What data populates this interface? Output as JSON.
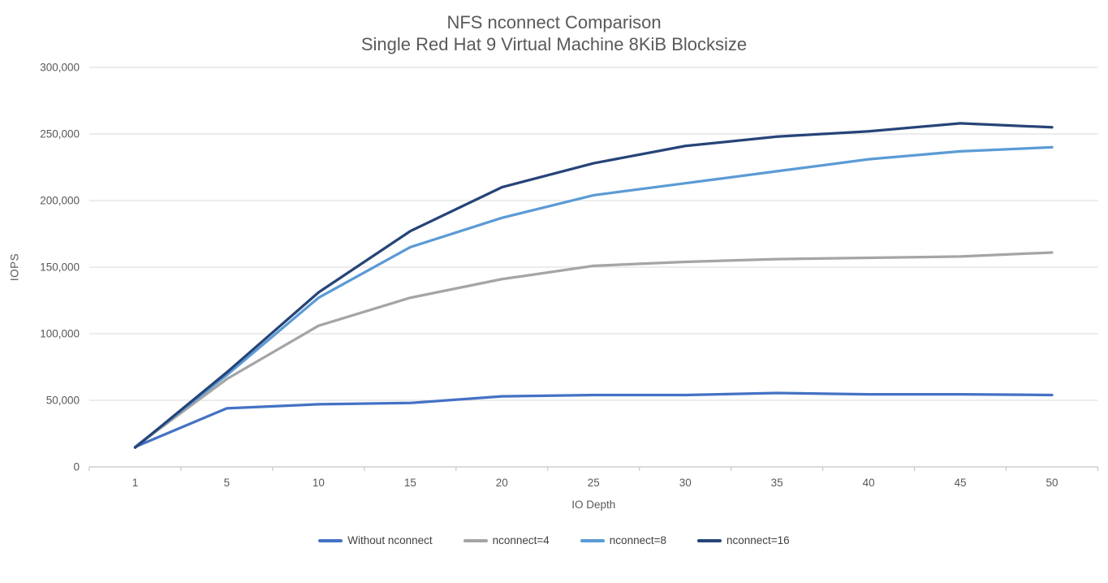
{
  "chart_data": {
    "type": "line",
    "title": "NFS nconnect Comparison",
    "subtitle": "Single Red Hat 9 Virtual Machine 8KiB Blocksize",
    "xlabel": "IO Depth",
    "ylabel": "IOPS",
    "categories": [
      1,
      5,
      10,
      15,
      20,
      25,
      30,
      35,
      40,
      45,
      50
    ],
    "y_axis": {
      "min": 0,
      "max": 300000,
      "step": 50000,
      "tick_labels": [
        "0",
        "50,000",
        "100,000",
        "150,000",
        "200,000",
        "250,000",
        "300,000"
      ]
    },
    "grid": true,
    "legend_position": "bottom",
    "series": [
      {
        "name": "Without nconnect",
        "color": "#4472C4",
        "values": [
          15000,
          44000,
          47000,
          48000,
          53000,
          54000,
          54000,
          55500,
          54500,
          54500,
          54000
        ]
      },
      {
        "name": "nconnect=4",
        "color": "#A5A5A5",
        "values": [
          15000,
          66000,
          106000,
          127000,
          141000,
          151000,
          154000,
          156000,
          157000,
          158000,
          161000
        ]
      },
      {
        "name": "nconnect=8",
        "color": "#5B9BD5",
        "values": [
          15000,
          69000,
          127000,
          165000,
          187000,
          204000,
          213000,
          222000,
          231000,
          237000,
          240000
        ]
      },
      {
        "name": "nconnect=16",
        "color": "#264478",
        "values": [
          14500,
          71000,
          131000,
          177000,
          210000,
          228000,
          241000,
          248000,
          252000,
          258000,
          255000
        ]
      }
    ],
    "colors": {
      "title_text": "#595959",
      "axis_text": "#595959",
      "gridline": "#D9D9D9",
      "axis_line": "#C6C6C6"
    }
  }
}
